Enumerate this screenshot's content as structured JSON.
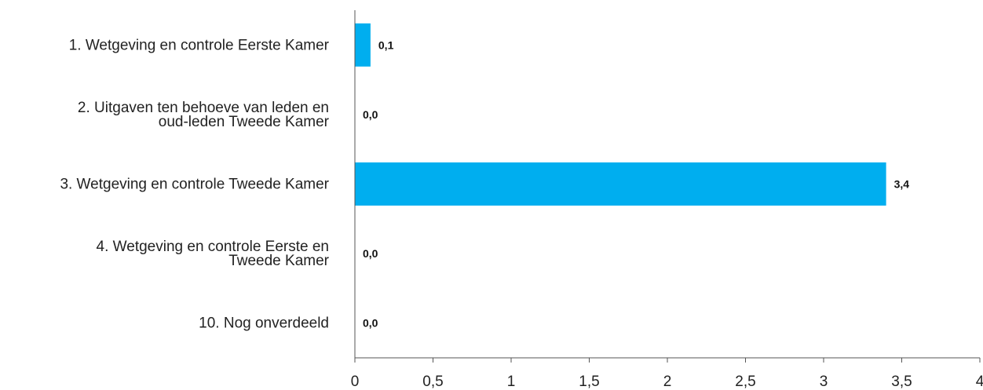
{
  "chart_data": {
    "type": "bar",
    "orientation": "horizontal",
    "categories": [
      [
        "1. Wetgeving en controle Eerste Kamer"
      ],
      [
        "2. Uitgaven ten behoeve van leden en",
        "oud-leden Tweede Kamer"
      ],
      [
        "3. Wetgeving en controle Tweede Kamer"
      ],
      [
        "4. Wetgeving en controle Eerste en",
        "Tweede Kamer"
      ],
      [
        "10. Nog onverdeeld"
      ]
    ],
    "values": [
      0.1,
      0.0,
      3.4,
      0.0,
      0.0
    ],
    "value_labels": [
      "0,1",
      "0,0",
      "3,4",
      "0,0",
      "0,0"
    ],
    "xlim": [
      0,
      4
    ],
    "xticks": [
      0,
      0.5,
      1,
      1.5,
      2,
      2.5,
      3,
      3.5,
      4
    ],
    "xtick_labels": [
      "0",
      "0,5",
      "1",
      "1,5",
      "2",
      "2,5",
      "3",
      "3,5",
      "4"
    ],
    "grid": false,
    "legend": "none",
    "bar_color": "#00AEEF"
  }
}
